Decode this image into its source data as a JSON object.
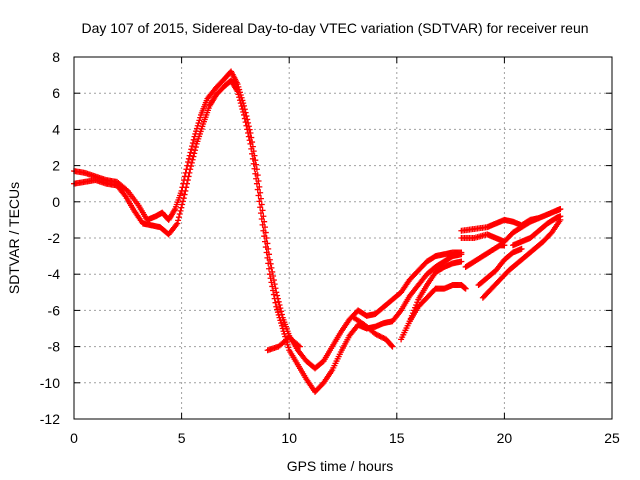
{
  "chart_data": {
    "type": "scatter",
    "title": "Day 107 of 2015, Sidereal Day-to-day VTEC variation (SDTVAR) for receiver reun",
    "xlabel": "GPS time / hours",
    "ylabel": "SDTVAR / TECUs",
    "xlim": [
      0,
      25
    ],
    "ylim": [
      -12,
      8
    ],
    "xticks": [
      0,
      5,
      10,
      15,
      20,
      25
    ],
    "yticks": [
      -12,
      -10,
      -8,
      -6,
      -4,
      -2,
      0,
      2,
      4,
      6,
      8
    ],
    "grid": true,
    "legend": "none",
    "marker": "plus",
    "colors": {
      "series": "#ff0000",
      "grid": "#a0a0a0",
      "axes": "#000000"
    },
    "series": [
      {
        "values": [
          [
            0.0,
            1.7
          ],
          [
            0.5,
            1.6
          ],
          [
            1.0,
            1.4
          ],
          [
            1.5,
            1.2
          ],
          [
            2.0,
            1.1
          ],
          [
            2.5,
            0.6
          ],
          [
            3.0,
            -0.2
          ],
          [
            3.4,
            -1.0
          ],
          [
            3.8,
            -0.8
          ],
          [
            4.1,
            -0.6
          ],
          [
            4.4,
            -1.0
          ],
          [
            4.7,
            -0.4
          ],
          [
            5.0,
            0.6
          ],
          [
            5.3,
            2.2
          ],
          [
            5.6,
            3.6
          ],
          [
            5.9,
            4.8
          ],
          [
            6.2,
            5.7
          ],
          [
            6.6,
            6.3
          ],
          [
            7.0,
            6.8
          ],
          [
            7.3,
            7.2
          ],
          [
            7.6,
            6.5
          ],
          [
            7.9,
            5.3
          ],
          [
            8.2,
            3.8
          ],
          [
            8.5,
            1.8
          ],
          [
            8.8,
            -0.8
          ],
          [
            9.1,
            -3.2
          ],
          [
            9.4,
            -5.0
          ],
          [
            9.7,
            -6.4
          ],
          [
            10.0,
            -7.4
          ],
          [
            10.4,
            -8.2
          ],
          [
            10.8,
            -8.8
          ],
          [
            11.2,
            -9.2
          ],
          [
            11.6,
            -8.8
          ],
          [
            12.0,
            -8.0
          ],
          [
            12.4,
            -7.2
          ],
          [
            12.8,
            -6.5
          ],
          [
            13.2,
            -6.0
          ],
          [
            13.6,
            -6.3
          ],
          [
            14.0,
            -6.2
          ],
          [
            14.4,
            -5.8
          ],
          [
            14.8,
            -5.4
          ],
          [
            15.2,
            -5.0
          ],
          [
            15.6,
            -4.3
          ],
          [
            16.0,
            -3.8
          ],
          [
            16.4,
            -3.3
          ],
          [
            16.8,
            -3.0
          ],
          [
            17.2,
            -2.9
          ],
          [
            17.6,
            -2.8
          ],
          [
            18.0,
            -2.8
          ]
        ]
      },
      {
        "values": [
          [
            0.0,
            1.0
          ],
          [
            0.5,
            1.1
          ],
          [
            1.0,
            1.2
          ],
          [
            1.5,
            1.0
          ],
          [
            2.0,
            0.9
          ],
          [
            2.4,
            0.3
          ],
          [
            2.8,
            -0.5
          ],
          [
            3.2,
            -1.2
          ],
          [
            3.6,
            -1.3
          ],
          [
            4.0,
            -1.4
          ],
          [
            4.4,
            -1.8
          ],
          [
            4.8,
            -1.2
          ],
          [
            5.1,
            0.2
          ],
          [
            5.4,
            1.8
          ],
          [
            5.7,
            3.2
          ],
          [
            6.0,
            4.3
          ],
          [
            6.3,
            5.3
          ],
          [
            6.6,
            5.9
          ],
          [
            7.0,
            6.4
          ],
          [
            7.3,
            6.7
          ],
          [
            7.6,
            6.1
          ],
          [
            7.9,
            4.8
          ],
          [
            8.2,
            3.2
          ],
          [
            8.5,
            1.0
          ],
          [
            8.8,
            -1.6
          ],
          [
            9.1,
            -4.0
          ],
          [
            9.4,
            -5.8
          ],
          [
            9.7,
            -7.0
          ],
          [
            10.0,
            -8.2
          ],
          [
            10.4,
            -9.0
          ],
          [
            10.8,
            -9.8
          ],
          [
            11.2,
            -10.5
          ],
          [
            11.6,
            -10.0
          ],
          [
            12.0,
            -9.3
          ],
          [
            12.4,
            -8.3
          ],
          [
            12.8,
            -7.4
          ],
          [
            13.2,
            -6.8
          ],
          [
            13.6,
            -7.0
          ],
          [
            14.0,
            -6.9
          ],
          [
            14.4,
            -6.7
          ],
          [
            14.8,
            -6.6
          ],
          [
            15.2,
            -6.0
          ],
          [
            15.6,
            -5.2
          ],
          [
            16.0,
            -4.6
          ],
          [
            16.4,
            -4.0
          ],
          [
            16.8,
            -3.6
          ],
          [
            17.2,
            -3.3
          ],
          [
            17.6,
            -3.0
          ],
          [
            18.0,
            -2.9
          ]
        ]
      },
      {
        "values": [
          [
            9.0,
            -8.2
          ],
          [
            9.5,
            -8.0
          ],
          [
            10.0,
            -7.5
          ],
          [
            10.5,
            -8.0
          ]
        ]
      },
      {
        "values": [
          [
            13.0,
            -6.4
          ],
          [
            13.5,
            -6.8
          ],
          [
            14.0,
            -7.3
          ],
          [
            14.5,
            -7.6
          ],
          [
            14.8,
            -8.0
          ]
        ]
      },
      {
        "values": [
          [
            15.2,
            -7.6
          ],
          [
            15.6,
            -6.6
          ],
          [
            16.0,
            -5.8
          ],
          [
            16.4,
            -5.3
          ],
          [
            16.8,
            -4.8
          ],
          [
            17.2,
            -4.8
          ],
          [
            17.6,
            -4.6
          ],
          [
            18.0,
            -4.6
          ],
          [
            18.2,
            -4.8
          ]
        ]
      },
      {
        "values": [
          [
            15.6,
            -6.6
          ],
          [
            16.0,
            -5.4
          ],
          [
            16.4,
            -4.6
          ],
          [
            16.8,
            -3.9
          ],
          [
            17.2,
            -3.6
          ],
          [
            17.6,
            -3.4
          ],
          [
            18.0,
            -3.3
          ]
        ]
      },
      {
        "values": [
          [
            18.2,
            -3.6
          ],
          [
            18.6,
            -3.3
          ],
          [
            19.0,
            -3.0
          ],
          [
            19.4,
            -2.7
          ],
          [
            19.8,
            -2.4
          ],
          [
            20.0,
            -2.4
          ]
        ]
      },
      {
        "values": [
          [
            18.8,
            -4.6
          ],
          [
            19.2,
            -4.2
          ],
          [
            19.6,
            -3.8
          ],
          [
            20.0,
            -3.2
          ],
          [
            20.4,
            -2.8
          ],
          [
            20.8,
            -2.6
          ]
        ]
      },
      {
        "values": [
          [
            19.0,
            -5.3
          ],
          [
            19.4,
            -4.8
          ],
          [
            19.8,
            -4.3
          ],
          [
            20.2,
            -3.8
          ],
          [
            20.6,
            -3.4
          ],
          [
            21.0,
            -3.0
          ],
          [
            21.4,
            -2.6
          ],
          [
            21.8,
            -2.2
          ],
          [
            22.2,
            -1.7
          ],
          [
            22.6,
            -1.0
          ]
        ]
      },
      {
        "values": [
          [
            18.0,
            -1.6
          ],
          [
            18.6,
            -1.5
          ],
          [
            19.2,
            -1.4
          ],
          [
            19.6,
            -1.2
          ],
          [
            20.0,
            -1.0
          ],
          [
            20.4,
            -1.1
          ],
          [
            20.8,
            -1.3
          ],
          [
            21.2,
            -1.0
          ],
          [
            21.6,
            -0.9
          ]
        ]
      },
      {
        "values": [
          [
            18.0,
            -2.0
          ],
          [
            18.6,
            -2.0
          ],
          [
            19.2,
            -1.8
          ],
          [
            19.6,
            -2.0
          ],
          [
            20.0,
            -2.2
          ],
          [
            20.4,
            -1.7
          ],
          [
            20.8,
            -1.4
          ],
          [
            21.2,
            -1.1
          ],
          [
            21.6,
            -0.9
          ],
          [
            22.0,
            -0.7
          ],
          [
            22.4,
            -0.5
          ],
          [
            22.6,
            -0.4
          ]
        ]
      },
      {
        "values": [
          [
            20.4,
            -2.4
          ],
          [
            20.8,
            -2.2
          ],
          [
            21.2,
            -2.0
          ],
          [
            21.6,
            -1.6
          ],
          [
            22.0,
            -1.2
          ],
          [
            22.4,
            -0.9
          ],
          [
            22.6,
            -0.8
          ]
        ]
      }
    ]
  }
}
